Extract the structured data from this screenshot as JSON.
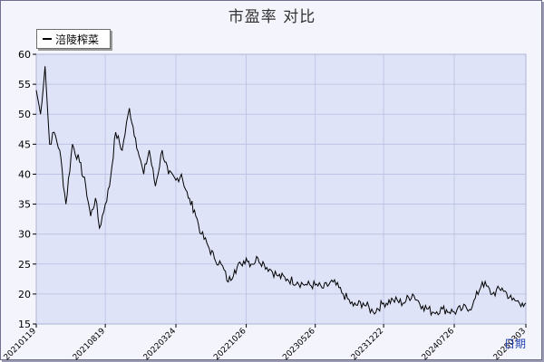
{
  "chart_data": {
    "type": "line",
    "title": "市盈率  对比",
    "xlabel": "日期",
    "ylabel": "",
    "ylim": [
      15,
      60
    ],
    "yticks": [
      15,
      20,
      25,
      30,
      35,
      40,
      45,
      50,
      55,
      60
    ],
    "xticks": [
      "20210119",
      "20210819",
      "20220324",
      "20221026",
      "20230526",
      "20231222",
      "20240726",
      "20250303"
    ],
    "grid": true,
    "legend_placement": "top-left",
    "colors": {
      "line": "#000000",
      "plot_bg": "#dfe3f8",
      "grid": "#b8c0e0"
    },
    "series": [
      {
        "name": "涪陵榨菜",
        "x": [
          "20210119",
          "20210201",
          "20210215",
          "20210301",
          "20210315",
          "20210401",
          "20210420",
          "20210510",
          "20210601",
          "20210620",
          "20210705",
          "20210720",
          "20210801",
          "20210819",
          "20210901",
          "20210920",
          "20211010",
          "20211101",
          "20211120",
          "20211201",
          "20211215",
          "20220101",
          "20220120",
          "20220210",
          "20220301",
          "20220324",
          "20220410",
          "20220501",
          "20220520",
          "20220610",
          "20220701",
          "20220720",
          "20220810",
          "20220901",
          "20220920",
          "20221010",
          "20221026",
          "20221110",
          "20221201",
          "20221220",
          "20230110",
          "20230201",
          "20230301",
          "20230401",
          "20230501",
          "20230526",
          "20230620",
          "20230720",
          "20230820",
          "20230920",
          "20231020",
          "20231120",
          "20231222",
          "20240120",
          "20240220",
          "20240320",
          "20240420",
          "20240520",
          "20240620",
          "20240726",
          "20240820",
          "20240920",
          "20241020",
          "20241120",
          "20241220",
          "20250120",
          "20250220",
          "20250303"
        ],
        "values": [
          54,
          50,
          58,
          45,
          47,
          44,
          35,
          45,
          42,
          38,
          33,
          36,
          31,
          35,
          38,
          47,
          44,
          51,
          46,
          43,
          40,
          44,
          38,
          44,
          40,
          39,
          40,
          36,
          34,
          30,
          28,
          26,
          25,
          22,
          24,
          25,
          26,
          25,
          26,
          25,
          24,
          23,
          22.5,
          22,
          21.5,
          21.5,
          21,
          22,
          20,
          18,
          18.5,
          17,
          18.5,
          19,
          18.5,
          20,
          18,
          17,
          17.5,
          17,
          17.5,
          18,
          22,
          20,
          21,
          19,
          18.5,
          18.5
        ]
      }
    ]
  }
}
